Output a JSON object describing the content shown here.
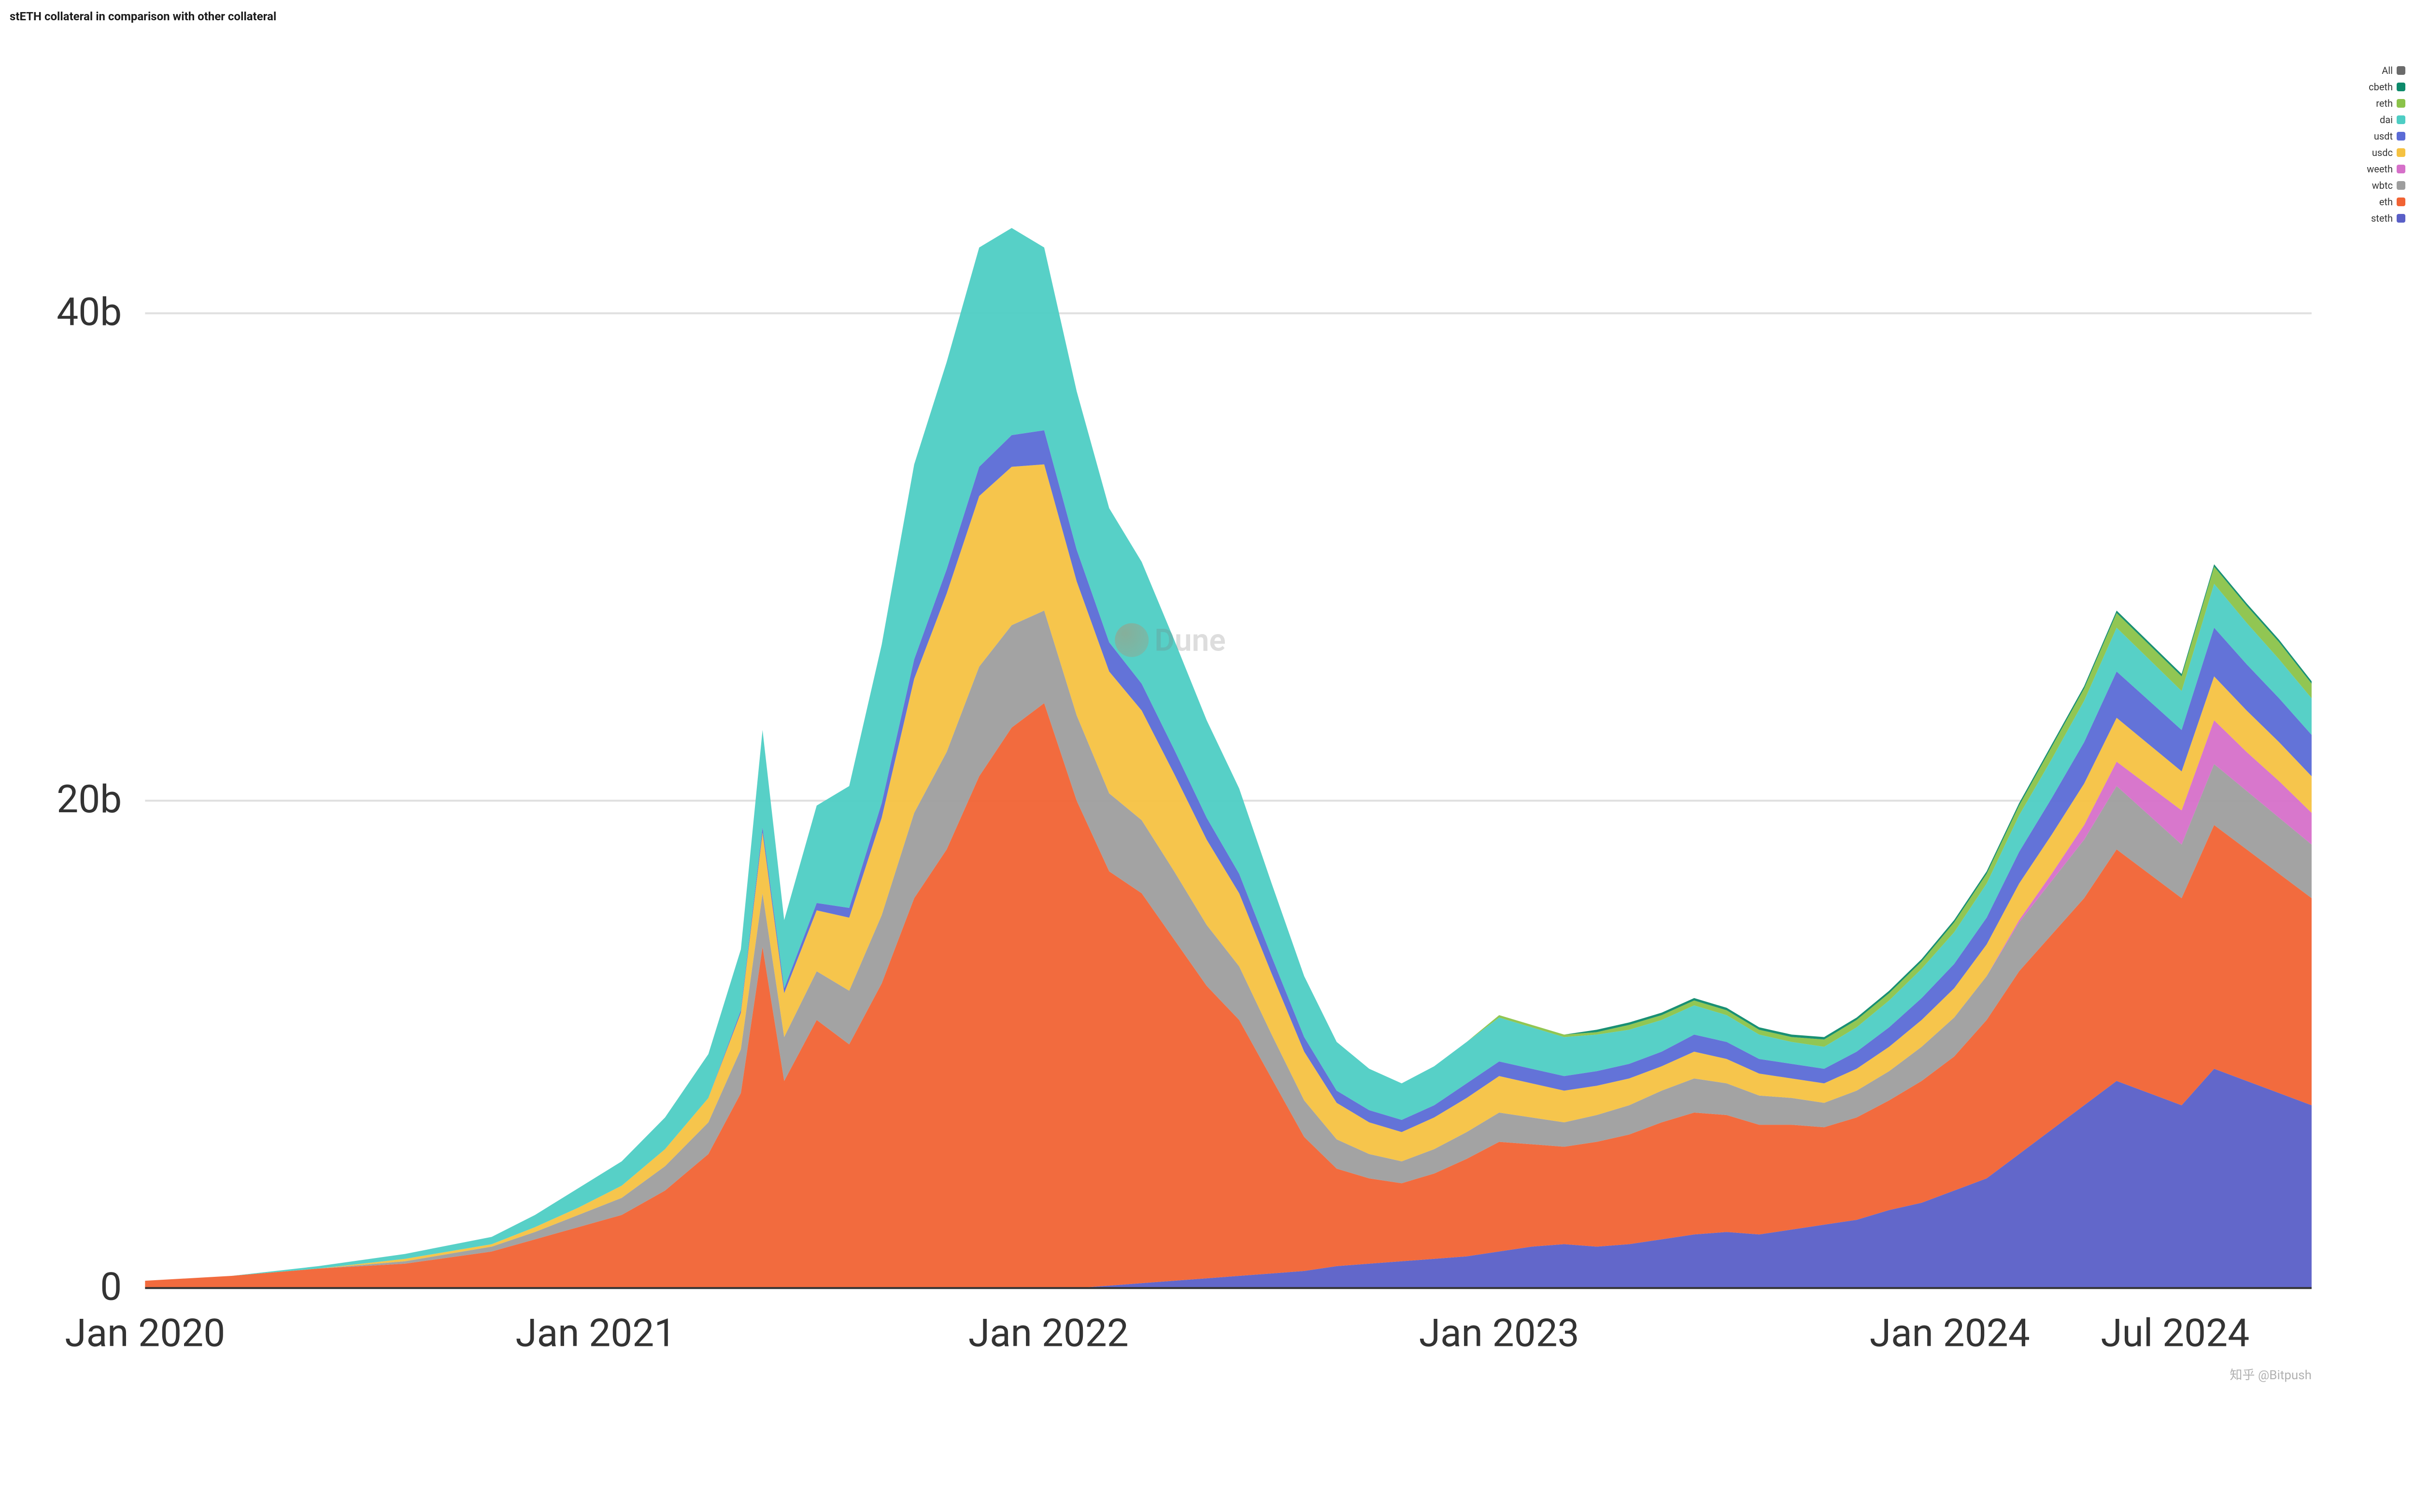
{
  "title": "stETH collateral in comparison with other collateral",
  "watermark_text": "Dune",
  "footer_watermark": "知乎 @Bitpush",
  "chart": {
    "type": "stacked-area",
    "background_color": "#ffffff",
    "grid_color": "#e0e0e0",
    "axis_color": "#333333",
    "title_fontsize": 24,
    "axis_fontsize": 20,
    "legend_fontsize": 20,
    "y_axis": {
      "min": 0,
      "max": 50,
      "ticks": [
        0,
        20,
        40
      ],
      "tick_labels": [
        "0",
        "20b",
        "40b"
      ],
      "unit": "b"
    },
    "x_axis": {
      "tick_labels": [
        "Jan 2020",
        "Jan 2021",
        "Jan 2022",
        "Jan 2023",
        "Jan 2024",
        "Jul 2024"
      ],
      "tick_positions_t": [
        0.0,
        0.208,
        0.417,
        0.625,
        0.833,
        0.937
      ]
    },
    "legend": [
      {
        "label": "All",
        "color": "#6b6b6b"
      },
      {
        "label": "cbeth",
        "color": "#0d8a6b"
      },
      {
        "label": "reth",
        "color": "#8bc34a"
      },
      {
        "label": "dai",
        "color": "#4ecdc4"
      },
      {
        "label": "usdt",
        "color": "#5b6bd6"
      },
      {
        "label": "usdc",
        "color": "#f5c242"
      },
      {
        "label": "weeth",
        "color": "#d670c9"
      },
      {
        "label": "wbtc",
        "color": "#9e9e9e"
      },
      {
        "label": "eth",
        "color": "#f16334"
      },
      {
        "label": "steth",
        "color": "#5a5fc7"
      }
    ],
    "series_stacking_order_bottom_to_top": [
      "steth",
      "eth",
      "wbtc",
      "weeth",
      "usdc",
      "usdt",
      "dai",
      "reth",
      "cbeth"
    ],
    "series_colors": {
      "steth": "#5a5fc7",
      "eth": "#f16334",
      "wbtc": "#9e9e9e",
      "weeth": "#d670c9",
      "usdc": "#f5c242",
      "usdt": "#5b6bd6",
      "dai": "#4ecdc4",
      "reth": "#8bc34a",
      "cbeth": "#0d8a6b"
    },
    "time_points_t": [
      0.0,
      0.04,
      0.08,
      0.12,
      0.16,
      0.18,
      0.2,
      0.22,
      0.24,
      0.26,
      0.275,
      0.285,
      0.295,
      0.31,
      0.325,
      0.34,
      0.355,
      0.37,
      0.385,
      0.4,
      0.415,
      0.43,
      0.445,
      0.46,
      0.475,
      0.49,
      0.505,
      0.52,
      0.535,
      0.55,
      0.565,
      0.58,
      0.595,
      0.61,
      0.625,
      0.64,
      0.655,
      0.67,
      0.685,
      0.7,
      0.715,
      0.73,
      0.745,
      0.76,
      0.775,
      0.79,
      0.805,
      0.82,
      0.835,
      0.85,
      0.865,
      0.88,
      0.895,
      0.91,
      0.925,
      0.94,
      0.955,
      0.97,
      0.985,
      1.0
    ],
    "values": {
      "steth": [
        0,
        0,
        0,
        0,
        0,
        0,
        0,
        0,
        0,
        0,
        0,
        0,
        0,
        0,
        0,
        0,
        0,
        0,
        0,
        0,
        0,
        0,
        0.1,
        0.2,
        0.3,
        0.4,
        0.5,
        0.6,
        0.7,
        0.9,
        1.0,
        1.1,
        1.2,
        1.3,
        1.5,
        1.7,
        1.8,
        1.7,
        1.8,
        2.0,
        2.2,
        2.3,
        2.2,
        2.4,
        2.6,
        2.8,
        3.2,
        3.5,
        4.0,
        4.5,
        5.5,
        6.5,
        7.5,
        8.5,
        8.0,
        7.5,
        9.0,
        8.5,
        8.0,
        7.5
      ],
      "eth": [
        0.3,
        0.5,
        0.8,
        1.0,
        1.5,
        2.0,
        2.5,
        3.0,
        4.0,
        5.5,
        8.0,
        14.0,
        8.5,
        11.0,
        10.0,
        12.5,
        16.0,
        18.0,
        21.0,
        23.0,
        24.0,
        20.0,
        17.0,
        16.0,
        14.0,
        12.0,
        10.5,
        8.0,
        5.5,
        4.0,
        3.5,
        3.2,
        3.5,
        4.0,
        4.5,
        4.2,
        4.0,
        4.3,
        4.5,
        4.8,
        5.0,
        4.8,
        4.5,
        4.3,
        4.0,
        4.2,
        4.5,
        5.0,
        5.5,
        6.5,
        7.5,
        8.0,
        8.5,
        9.5,
        9.0,
        8.5,
        10.0,
        9.5,
        9.0,
        8.5
      ],
      "wbtc": [
        0,
        0,
        0,
        0.1,
        0.2,
        0.3,
        0.5,
        0.7,
        1.0,
        1.3,
        1.8,
        2.2,
        1.8,
        2.0,
        2.2,
        2.8,
        3.5,
        4.0,
        4.5,
        4.2,
        3.8,
        3.5,
        3.2,
        3.0,
        2.8,
        2.5,
        2.2,
        1.8,
        1.5,
        1.2,
        1.0,
        0.9,
        1.0,
        1.1,
        1.2,
        1.1,
        1.0,
        1.1,
        1.2,
        1.3,
        1.4,
        1.3,
        1.2,
        1.1,
        1.0,
        1.1,
        1.2,
        1.4,
        1.6,
        1.8,
        2.0,
        2.2,
        2.4,
        2.6,
        2.4,
        2.2,
        2.5,
        2.4,
        2.3,
        2.2
      ],
      "weeth": [
        0,
        0,
        0,
        0,
        0,
        0,
        0,
        0,
        0,
        0,
        0,
        0,
        0,
        0,
        0,
        0,
        0,
        0,
        0,
        0,
        0,
        0,
        0,
        0,
        0,
        0,
        0,
        0,
        0,
        0,
        0,
        0,
        0,
        0,
        0,
        0,
        0,
        0,
        0,
        0,
        0,
        0,
        0,
        0,
        0,
        0,
        0,
        0,
        0,
        0,
        0.1,
        0.3,
        0.6,
        1.0,
        1.2,
        1.4,
        1.8,
        1.6,
        1.5,
        1.3
      ],
      "usdc": [
        0,
        0,
        0,
        0.1,
        0.1,
        0.2,
        0.3,
        0.5,
        0.7,
        1.0,
        1.5,
        2.5,
        1.8,
        2.5,
        3.0,
        4.0,
        5.5,
        6.5,
        7.0,
        6.5,
        6.0,
        5.5,
        5.0,
        4.5,
        4.0,
        3.5,
        3.0,
        2.5,
        2.0,
        1.5,
        1.3,
        1.2,
        1.3,
        1.4,
        1.5,
        1.4,
        1.3,
        1.2,
        1.1,
        1.0,
        1.1,
        1.0,
        0.9,
        0.8,
        0.8,
        0.9,
        1.0,
        1.1,
        1.2,
        1.3,
        1.5,
        1.6,
        1.7,
        1.8,
        1.7,
        1.6,
        1.8,
        1.7,
        1.6,
        1.5
      ],
      "usdt": [
        0,
        0,
        0,
        0,
        0,
        0,
        0,
        0,
        0,
        0,
        0.1,
        0.2,
        0.2,
        0.3,
        0.4,
        0.6,
        0.8,
        1.0,
        1.2,
        1.3,
        1.4,
        1.3,
        1.2,
        1.1,
        1.0,
        0.9,
        0.8,
        0.7,
        0.6,
        0.5,
        0.5,
        0.5,
        0.5,
        0.6,
        0.6,
        0.6,
        0.6,
        0.6,
        0.6,
        0.6,
        0.7,
        0.7,
        0.6,
        0.6,
        0.6,
        0.7,
        0.8,
        0.9,
        1.0,
        1.1,
        1.3,
        1.5,
        1.7,
        1.9,
        1.8,
        1.7,
        2.0,
        1.9,
        1.8,
        1.7
      ],
      "dai": [
        0,
        0,
        0.1,
        0.2,
        0.3,
        0.5,
        0.8,
        1.0,
        1.3,
        1.8,
        2.5,
        4.0,
        2.8,
        4.0,
        5.0,
        6.5,
        8.0,
        8.5,
        9.0,
        8.5,
        7.5,
        6.5,
        5.5,
        5.0,
        4.5,
        4.0,
        3.5,
        3.0,
        2.5,
        2.0,
        1.7,
        1.5,
        1.6,
        1.7,
        1.8,
        1.7,
        1.6,
        1.5,
        1.4,
        1.3,
        1.2,
        1.1,
        1.0,
        0.9,
        0.9,
        1.0,
        1.1,
        1.2,
        1.3,
        1.4,
        1.5,
        1.6,
        1.7,
        1.8,
        1.7,
        1.6,
        1.8,
        1.7,
        1.6,
        1.5
      ],
      "reth": [
        0,
        0,
        0,
        0,
        0,
        0,
        0,
        0,
        0,
        0,
        0,
        0,
        0,
        0,
        0,
        0,
        0,
        0,
        0,
        0,
        0,
        0,
        0,
        0,
        0,
        0,
        0,
        0,
        0,
        0,
        0,
        0,
        0,
        0,
        0.1,
        0.1,
        0.1,
        0.1,
        0.2,
        0.2,
        0.2,
        0.2,
        0.2,
        0.2,
        0.3,
        0.3,
        0.3,
        0.3,
        0.4,
        0.4,
        0.4,
        0.5,
        0.5,
        0.6,
        0.6,
        0.6,
        0.7,
        0.7,
        0.7,
        0.6
      ],
      "cbeth": [
        0,
        0,
        0,
        0,
        0,
        0,
        0,
        0,
        0,
        0,
        0,
        0,
        0,
        0,
        0,
        0,
        0,
        0,
        0,
        0,
        0,
        0,
        0,
        0,
        0,
        0,
        0,
        0,
        0,
        0,
        0,
        0,
        0,
        0,
        0,
        0,
        0,
        0.1,
        0.1,
        0.1,
        0.1,
        0.1,
        0.1,
        0.1,
        0.1,
        0.1,
        0.1,
        0.1,
        0.1,
        0.1,
        0.1,
        0.1,
        0.1,
        0.1,
        0.1,
        0.1,
        0.1,
        0.1,
        0.1,
        0.1
      ]
    }
  }
}
